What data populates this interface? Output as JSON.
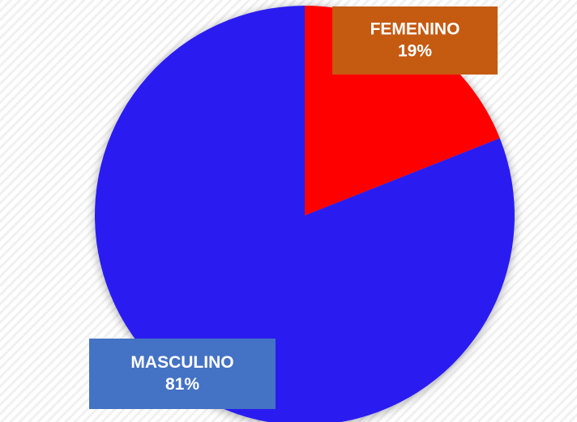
{
  "chart_data": {
    "type": "pie",
    "categories": [
      "FEMENINO",
      "MASCULINO"
    ],
    "values": [
      19,
      81
    ],
    "value_labels": [
      "19%",
      "81%"
    ],
    "colors": [
      "#ff0000",
      "#2b1ff0"
    ],
    "label_colors": [
      "#c55a11",
      "#4472c4"
    ]
  }
}
